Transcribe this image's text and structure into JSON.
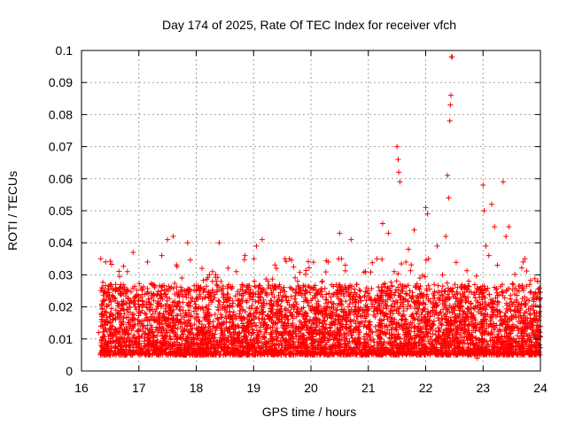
{
  "chart_data": {
    "type": "scatter",
    "title": "Day 174 of 2025, Rate Of TEC Index for receiver vfch",
    "xlabel": "GPS time / hours",
    "ylabel": "ROTI / TECUs",
    "xlim": [
      16,
      24
    ],
    "ylim": [
      0,
      0.1
    ],
    "xticks": [
      16,
      17,
      18,
      19,
      20,
      21,
      22,
      23,
      24
    ],
    "xtick_labels": [
      "16",
      "17",
      "18",
      "19",
      "20",
      "21",
      "22",
      "23",
      "24"
    ],
    "yticks": [
      0,
      0.01,
      0.02,
      0.03,
      0.04,
      0.05,
      0.06,
      0.07,
      0.08,
      0.09,
      0.1
    ],
    "ytick_labels": [
      "0",
      "0.01",
      "0.02",
      "0.03",
      "0.04",
      "0.05",
      "0.06",
      "0.07",
      "0.08",
      "0.09",
      "0.1"
    ],
    "grid": true,
    "marker": "+",
    "color": "#ff0000",
    "series": [
      {
        "name": "ROTI",
        "points": [
          [
            16.3,
            0.012
          ],
          [
            16.34,
            0.008
          ],
          [
            16.38,
            0.021
          ],
          [
            16.42,
            0.034
          ],
          [
            16.46,
            0.015
          ],
          [
            16.5,
            0.027
          ],
          [
            16.55,
            0.011
          ],
          [
            16.6,
            0.019
          ],
          [
            16.65,
            0.009
          ],
          [
            16.7,
            0.024
          ],
          [
            16.75,
            0.013
          ],
          [
            16.8,
            0.031
          ],
          [
            16.85,
            0.016
          ],
          [
            16.9,
            0.037
          ],
          [
            16.95,
            0.01
          ],
          [
            17.0,
            0.022
          ],
          [
            17.05,
            0.006
          ],
          [
            17.1,
            0.018
          ],
          [
            17.15,
            0.034
          ],
          [
            17.2,
            0.012
          ],
          [
            17.25,
            0.027
          ],
          [
            17.3,
            0.009
          ],
          [
            17.35,
            0.015
          ],
          [
            17.4,
            0.036
          ],
          [
            17.45,
            0.011
          ],
          [
            17.5,
            0.041
          ],
          [
            17.55,
            0.014
          ],
          [
            17.6,
            0.042
          ],
          [
            17.65,
            0.02
          ],
          [
            17.7,
            0.008
          ],
          [
            17.75,
            0.029
          ],
          [
            17.8,
            0.013
          ],
          [
            17.85,
            0.04
          ],
          [
            17.9,
            0.017
          ],
          [
            17.95,
            0.01
          ],
          [
            18.0,
            0.025
          ],
          [
            18.05,
            0.012
          ],
          [
            18.1,
            0.032
          ],
          [
            18.15,
            0.016
          ],
          [
            18.2,
            0.009
          ],
          [
            18.25,
            0.022
          ],
          [
            18.3,
            0.014
          ],
          [
            18.35,
            0.028
          ],
          [
            18.4,
            0.04
          ],
          [
            18.45,
            0.011
          ],
          [
            18.5,
            0.019
          ],
          [
            18.55,
            0.007
          ],
          [
            18.6,
            0.026
          ],
          [
            18.65,
            0.013
          ],
          [
            18.7,
            0.031
          ],
          [
            18.75,
            0.017
          ],
          [
            18.8,
            0.009
          ],
          [
            18.85,
            0.036
          ],
          [
            18.9,
            0.015
          ],
          [
            18.95,
            0.024
          ],
          [
            19.0,
            0.012
          ],
          [
            19.05,
            0.039
          ],
          [
            19.1,
            0.018
          ],
          [
            19.15,
            0.041
          ],
          [
            19.2,
            0.013
          ],
          [
            19.25,
            0.028
          ],
          [
            19.3,
            0.01
          ],
          [
            19.35,
            0.021
          ],
          [
            19.4,
            0.032
          ],
          [
            19.45,
            0.016
          ],
          [
            19.5,
            0.008
          ],
          [
            19.55,
            0.014
          ],
          [
            19.6,
            0.019
          ],
          [
            19.65,
            0.011
          ],
          [
            19.7,
            0.007
          ],
          [
            19.75,
            0.017
          ],
          [
            19.8,
            0.013
          ],
          [
            19.85,
            0.009
          ],
          [
            19.9,
            0.024
          ],
          [
            19.95,
            0.012
          ],
          [
            20.0,
            0.006
          ],
          [
            20.05,
            0.015
          ],
          [
            20.1,
            0.021
          ],
          [
            20.15,
            0.01
          ],
          [
            20.2,
            0.028
          ],
          [
            20.25,
            0.013
          ],
          [
            20.3,
            0.034
          ],
          [
            20.35,
            0.018
          ],
          [
            20.4,
            0.024
          ],
          [
            20.45,
            0.011
          ],
          [
            20.5,
            0.043
          ],
          [
            20.55,
            0.016
          ],
          [
            20.6,
            0.033
          ],
          [
            20.65,
            0.02
          ],
          [
            20.7,
            0.041
          ],
          [
            20.75,
            0.013
          ],
          [
            20.8,
            0.027
          ],
          [
            20.85,
            0.01
          ],
          [
            20.9,
            0.019
          ],
          [
            20.95,
            0.031
          ],
          [
            21.0,
            0.014
          ],
          [
            21.05,
            0.022
          ],
          [
            21.1,
            0.009
          ],
          [
            21.15,
            0.035
          ],
          [
            21.2,
            0.016
          ],
          [
            21.25,
            0.046
          ],
          [
            21.3,
            0.021
          ],
          [
            21.35,
            0.043
          ],
          [
            21.4,
            0.013
          ],
          [
            21.45,
            0.031
          ],
          [
            21.5,
            0.07
          ],
          [
            21.52,
            0.066
          ],
          [
            21.53,
            0.062
          ],
          [
            21.55,
            0.059
          ],
          [
            21.6,
            0.025
          ],
          [
            21.65,
            0.012
          ],
          [
            21.7,
            0.038
          ],
          [
            21.75,
            0.017
          ],
          [
            21.8,
            0.044
          ],
          [
            21.85,
            0.011
          ],
          [
            21.9,
            0.029
          ],
          [
            21.95,
            0.019
          ],
          [
            22.0,
            0.051
          ],
          [
            22.03,
            0.049
          ],
          [
            22.05,
            0.035
          ],
          [
            22.1,
            0.014
          ],
          [
            22.15,
            0.027
          ],
          [
            22.2,
            0.039
          ],
          [
            22.25,
            0.013
          ],
          [
            22.3,
            0.021
          ],
          [
            22.35,
            0.042
          ],
          [
            22.38,
            0.061
          ],
          [
            22.4,
            0.054
          ],
          [
            22.42,
            0.078
          ],
          [
            22.43,
            0.083
          ],
          [
            22.44,
            0.086
          ],
          [
            22.45,
            0.098
          ],
          [
            22.46,
            0.098
          ],
          [
            22.5,
            0.019
          ],
          [
            22.55,
            0.012
          ],
          [
            22.6,
            0.024
          ],
          [
            22.65,
            0.009
          ],
          [
            22.7,
            0.017
          ],
          [
            22.75,
            0.028
          ],
          [
            22.8,
            0.011
          ],
          [
            22.85,
            0.014
          ],
          [
            22.9,
            0.004
          ],
          [
            22.95,
            0.021
          ],
          [
            23.0,
            0.058
          ],
          [
            23.02,
            0.05
          ],
          [
            23.05,
            0.039
          ],
          [
            23.1,
            0.036
          ],
          [
            23.15,
            0.052
          ],
          [
            23.2,
            0.045
          ],
          [
            23.25,
            0.033
          ],
          [
            23.3,
            0.017
          ],
          [
            23.35,
            0.059
          ],
          [
            23.4,
            0.042
          ],
          [
            23.45,
            0.045
          ],
          [
            23.5,
            0.013
          ],
          [
            23.55,
            0.024
          ],
          [
            23.6,
            0.011
          ],
          [
            23.65,
            0.019
          ],
          [
            23.7,
            0.034
          ],
          [
            23.75,
            0.015
          ],
          [
            23.8,
            0.022
          ],
          [
            23.85,
            0.009
          ],
          [
            23.9,
            0.018
          ],
          [
            23.95,
            0.028
          ],
          [
            24.0,
            0.014
          ]
        ]
      }
    ]
  }
}
